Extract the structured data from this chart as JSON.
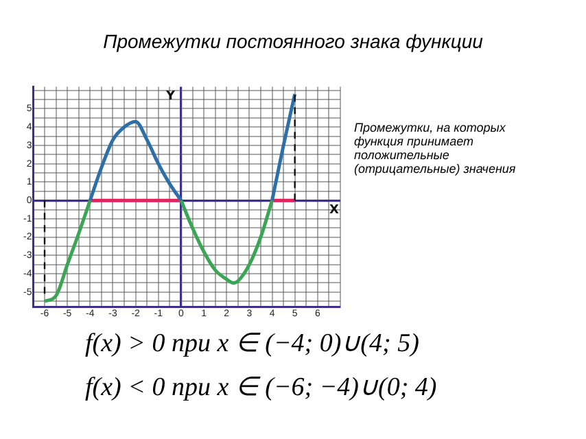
{
  "chart_data": {
    "type": "line",
    "title": "Промежутки постоянного знака функции",
    "xlabel": "X",
    "ylabel": "Y",
    "xlim": [
      -6.5,
      7
    ],
    "ylim": [
      -5.8,
      6.2
    ],
    "xticks": [
      -6,
      -5,
      -4,
      -3,
      -2,
      -1,
      0,
      1,
      2,
      3,
      4,
      5,
      6
    ],
    "yticks": [
      -5,
      -4,
      -3,
      -2,
      -1,
      0,
      1,
      2,
      3,
      4,
      5
    ],
    "grid": true,
    "marker": "none",
    "line_style": "solid",
    "series": [
      {
        "color": "#2f6fa8",
        "x": [
          -4,
          -3.5,
          -3,
          -2.5,
          -2,
          -1.5,
          -1,
          -0.5,
          0,
          2,
          4,
          4.5,
          5
        ],
        "values": [
          0,
          1.8,
          3.3,
          4.0,
          4.3,
          3.3,
          2.0,
          0.9,
          0,
          null,
          0,
          3,
          5.8
        ]
      },
      {
        "color": "#3aa655",
        "x": [
          -6,
          -5.5,
          -5,
          -4.5,
          -4,
          -2,
          0,
          0.5,
          1,
          1.5,
          2,
          2.3,
          2.5,
          3,
          3.5,
          4
        ],
        "values": [
          -5.5,
          -5.2,
          -3.5,
          -1.8,
          0,
          null,
          0,
          -1.5,
          -2.8,
          -3.8,
          -4.3,
          -4.5,
          -4.4,
          -3.5,
          -2,
          0
        ]
      },
      {
        "color": "#e0245e",
        "x": [
          -4,
          0,
          2,
          4,
          5
        ],
        "values": [
          0,
          0,
          null,
          0,
          0
        ]
      }
    ],
    "ref_lines": [
      {
        "axis": "x",
        "value": -6,
        "line_style": "dashed"
      },
      {
        "axis": "x",
        "value": 5,
        "line_style": "dashed"
      }
    ],
    "annotations": [
      "Промежутки, на которых функция принимает положительные (отрицательные) значения",
      "f(x) > 0 при x ∈ (−4; 0)∪(4; 5)",
      "f(x) < 0 при x ∈ (−6; −4)∪(0; 4)"
    ]
  }
}
